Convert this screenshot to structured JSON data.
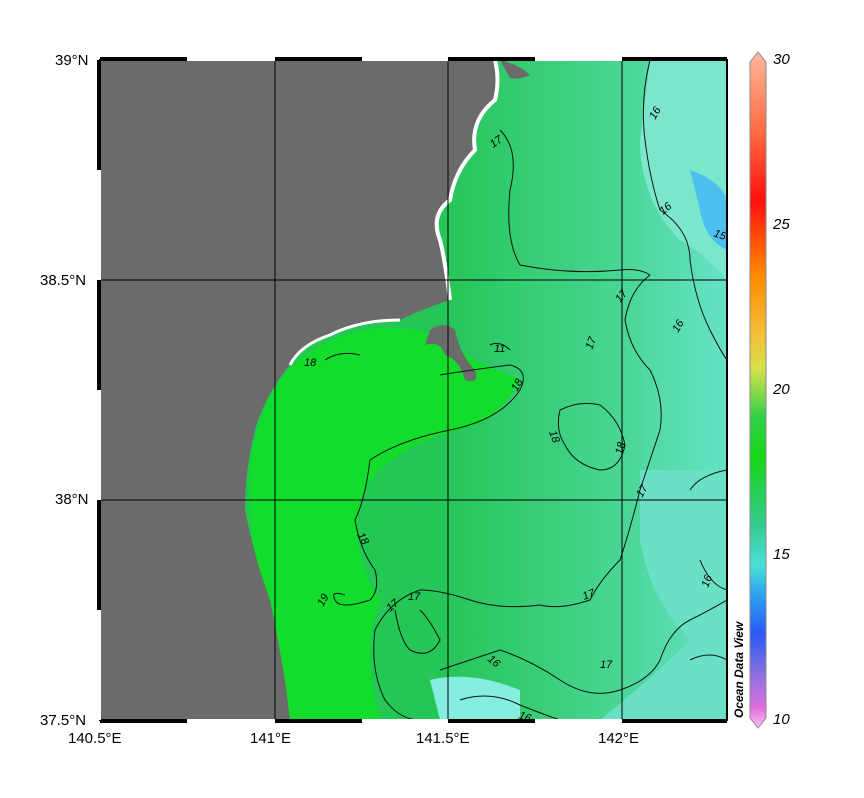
{
  "map": {
    "x_ticks": [
      "140.5°E",
      "141°E",
      "141.5°E",
      "142°E"
    ],
    "y_ticks": [
      "39°N",
      "38.5°N",
      "38°N",
      "37.5°N"
    ],
    "lon_values": [
      140.5,
      141.0,
      141.5,
      142.0
    ],
    "lat_values": [
      39.0,
      38.5,
      38.0,
      37.5
    ],
    "lon_range": [
      140.5,
      142.3
    ],
    "lat_range": [
      37.5,
      39.0
    ],
    "grid": true,
    "land_color": "#6b6b6b",
    "contour_labels": [
      "17",
      "16",
      "16",
      "15",
      "17",
      "16",
      "17",
      "11",
      "18",
      "18",
      "18",
      "17",
      "18",
      "17",
      "17",
      "19",
      "17",
      "16",
      "17",
      "16",
      "16",
      "18"
    ]
  },
  "colorbar": {
    "ticks": [
      "30",
      "25",
      "20",
      "15",
      "10"
    ],
    "tick_values": [
      30,
      25,
      20,
      15,
      10
    ],
    "colors": [
      "#ffb89a",
      "#ff6a40",
      "#ff1010",
      "#ff8a00",
      "#f2c23a",
      "#d4e24a",
      "#30d04a",
      "#16d616",
      "#35cc90",
      "#48e0d8",
      "#2ea6f0",
      "#2a5af5",
      "#8a70e0",
      "#e070e0",
      "#ffc0f0"
    ]
  },
  "credit": "Ocean Data View"
}
